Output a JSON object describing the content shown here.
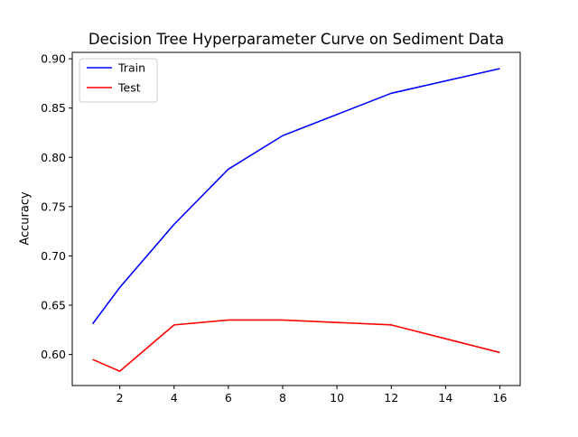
{
  "chart_data": {
    "type": "line",
    "title": "Decision Tree Hyperparameter Curve on Sediment Data",
    "xlabel": "",
    "ylabel": "Accuracy",
    "xlim": [
      0.25,
      16.75
    ],
    "ylim": [
      0.5685,
      0.9065
    ],
    "xticks": [
      2,
      4,
      6,
      8,
      10,
      12,
      14,
      16
    ],
    "yticks": [
      0.6,
      0.65,
      0.7,
      0.75,
      0.8,
      0.85,
      0.9
    ],
    "xtick_labels": [
      "2",
      "4",
      "6",
      "8",
      "10",
      "12",
      "14",
      "16"
    ],
    "ytick_labels": [
      "0.60",
      "0.65",
      "0.70",
      "0.75",
      "0.80",
      "0.85",
      "0.90"
    ],
    "grid": false,
    "legend_position": "upper-left",
    "x": [
      1,
      2,
      4,
      6,
      8,
      12,
      16
    ],
    "series": [
      {
        "name": "Train",
        "color": "#0000ff",
        "values": [
          0.631,
          0.668,
          0.732,
          0.788,
          0.822,
          0.865,
          0.89
        ]
      },
      {
        "name": "Test",
        "color": "#ff0000",
        "values": [
          0.595,
          0.583,
          0.63,
          0.635,
          0.635,
          0.63,
          0.602
        ]
      }
    ]
  }
}
